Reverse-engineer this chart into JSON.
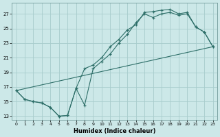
{
  "xlabel": "Humidex (Indice chaleur)",
  "bg_color": "#cce8e8",
  "grid_color": "#a8cccc",
  "line_color": "#2d6e68",
  "xlim": [
    -0.5,
    23.5
  ],
  "ylim": [
    12.5,
    28.5
  ],
  "xticks": [
    0,
    1,
    2,
    3,
    4,
    5,
    6,
    7,
    8,
    9,
    10,
    11,
    12,
    13,
    14,
    15,
    16,
    17,
    18,
    19,
    20,
    21,
    22,
    23
  ],
  "yticks": [
    13,
    15,
    17,
    19,
    21,
    23,
    25,
    27
  ],
  "curve1_x": [
    0,
    1,
    2,
    3,
    4,
    5,
    6,
    7,
    8,
    9,
    10,
    11,
    12,
    13,
    14,
    15,
    16,
    17,
    18,
    19,
    20,
    21,
    22,
    23
  ],
  "curve1_y": [
    16.5,
    15.3,
    15.0,
    14.8,
    14.2,
    13.0,
    13.1,
    16.8,
    19.5,
    20.0,
    21.0,
    22.5,
    23.5,
    24.8,
    25.5,
    27.2,
    27.3,
    27.5,
    27.6,
    27.0,
    27.2,
    25.2,
    24.5,
    22.5
  ],
  "curve2_x": [
    0,
    1,
    2,
    3,
    4,
    5,
    6,
    7,
    8,
    9,
    10,
    11,
    12,
    13,
    14,
    15,
    16,
    17,
    18,
    19,
    20,
    21,
    22,
    23
  ],
  "curve2_y": [
    16.5,
    15.3,
    15.0,
    14.8,
    14.2,
    13.0,
    13.1,
    16.8,
    14.5,
    19.5,
    20.5,
    21.5,
    23.0,
    24.2,
    25.8,
    27.0,
    26.5,
    27.0,
    27.2,
    26.8,
    27.0,
    25.2,
    24.5,
    22.5
  ],
  "curve3_x": [
    0,
    23
  ],
  "curve3_y": [
    16.5,
    22.5
  ]
}
